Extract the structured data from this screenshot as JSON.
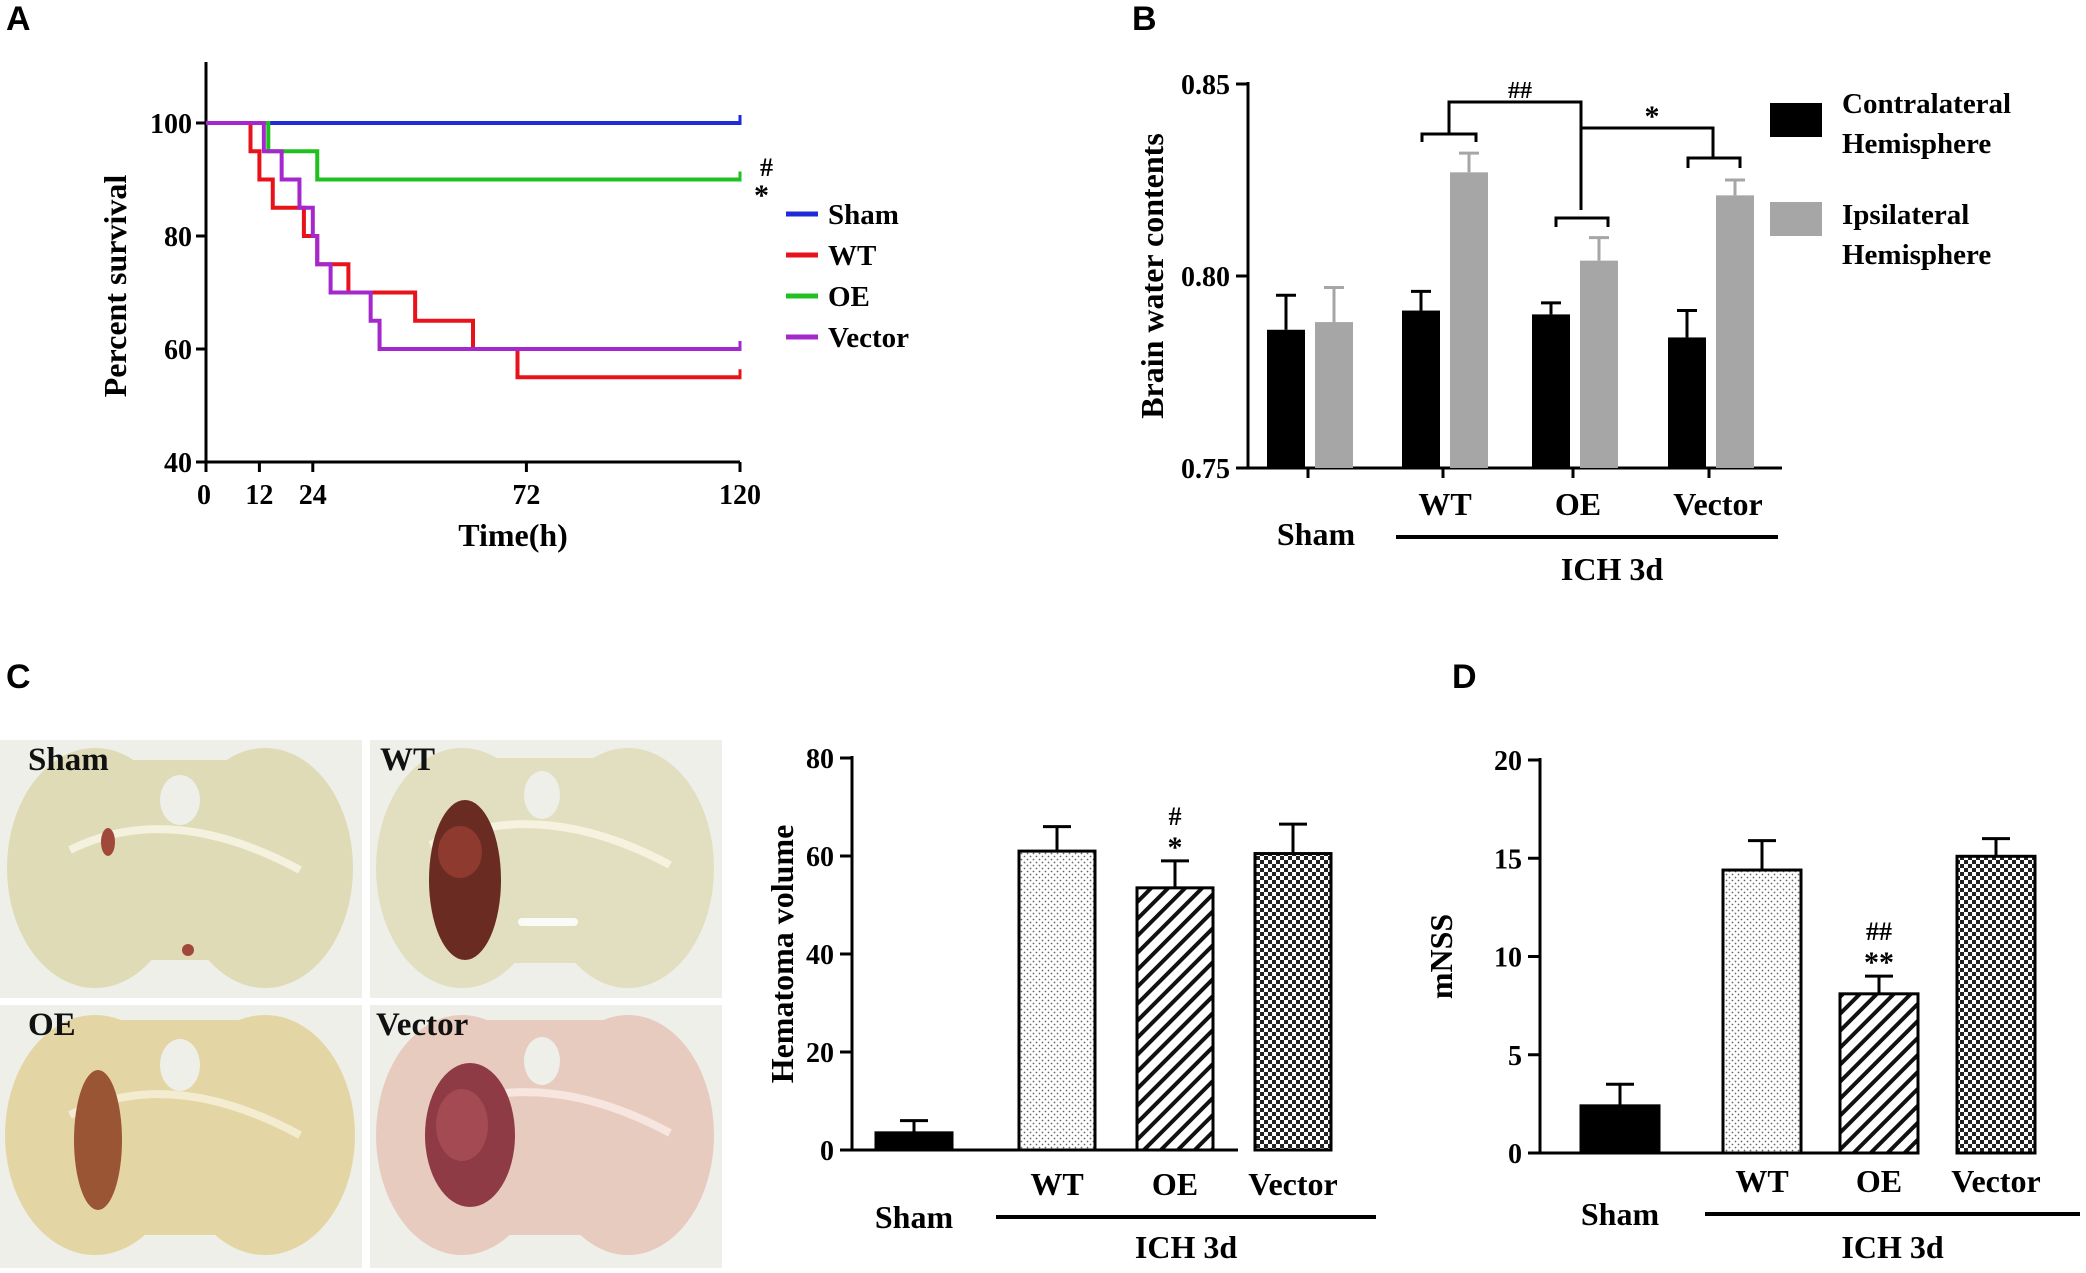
{
  "panels": {
    "A": "A",
    "B": "B",
    "C": "C",
    "D": "D"
  },
  "colors": {
    "sham": "#1f2bd8",
    "wt": "#e8121a",
    "oe": "#1fc01f",
    "vector": "#a528cc",
    "contra": "#000000",
    "ipsi": "#a6a6a6"
  },
  "chart_data": [
    {
      "id": "A",
      "type": "line",
      "title": "",
      "xlabel": "Time(h)",
      "ylabel": "Percent survival",
      "xlim": [
        0,
        120
      ],
      "ylim": [
        40,
        110
      ],
      "xticks": [
        0,
        12,
        24,
        72,
        120
      ],
      "yticks": [
        40,
        60,
        80,
        100
      ],
      "series": [
        {
          "name": "Sham",
          "color": "#1f2bd8",
          "steps": [
            [
              0,
              100
            ],
            [
              120,
              100
            ]
          ]
        },
        {
          "name": "WT",
          "color": "#e8121a",
          "steps": [
            [
              0,
              100
            ],
            [
              10,
              95
            ],
            [
              12,
              90
            ],
            [
              15,
              85
            ],
            [
              22,
              80
            ],
            [
              25,
              75
            ],
            [
              32,
              70
            ],
            [
              47,
              65
            ],
            [
              60,
              60
            ],
            [
              70,
              55
            ],
            [
              120,
              55
            ]
          ]
        },
        {
          "name": "OE",
          "color": "#1fc01f",
          "steps": [
            [
              0,
              100
            ],
            [
              14,
              95
            ],
            [
              25,
              90
            ],
            [
              120,
              90
            ]
          ]
        },
        {
          "name": "Vector",
          "color": "#a528cc",
          "steps": [
            [
              0,
              100
            ],
            [
              13,
              95
            ],
            [
              17,
              90
            ],
            [
              21,
              85
            ],
            [
              24,
              80
            ],
            [
              25,
              75
            ],
            [
              28,
              70
            ],
            [
              37,
              65
            ],
            [
              39,
              60
            ],
            [
              120,
              60
            ]
          ]
        }
      ],
      "annotations": [
        "#",
        "*"
      ]
    },
    {
      "id": "B",
      "type": "bar",
      "ylabel": "Brain water contents",
      "ylim": [
        0.75,
        0.85
      ],
      "yticks": [
        "0.75",
        "0.80",
        "0.85"
      ],
      "categories": [
        "Sham",
        "WT",
        "OE",
        "Vector"
      ],
      "group_label": "ICH 3d",
      "series": [
        {
          "name": "Contralateral Hemisphere",
          "legend_lines": [
            "Contralateral",
            "Hemisphere"
          ],
          "values": [
            0.786,
            0.791,
            0.79,
            0.784
          ],
          "errors": [
            0.009,
            0.005,
            0.003,
            0.007
          ]
        },
        {
          "name": "Ipsilateral Hemisphere",
          "legend_lines": [
            "Ipsilateral",
            "Hemisphere"
          ],
          "values": [
            0.788,
            0.827,
            0.804,
            0.821
          ],
          "errors": [
            0.009,
            0.005,
            0.006,
            0.004
          ]
        }
      ],
      "annotations": [
        "##",
        "*"
      ]
    },
    {
      "id": "C",
      "type": "bar",
      "ylabel": "Hematoma volume",
      "ylim": [
        0,
        80
      ],
      "yticks": [
        0,
        20,
        40,
        60,
        80
      ],
      "categories": [
        "Sham",
        "WT",
        "OE",
        "Vector"
      ],
      "group_label": "ICH 3d",
      "values": [
        3.5,
        61,
        53.5,
        60.5
      ],
      "errors": [
        2.5,
        5,
        5.5,
        6
      ],
      "annotations": {
        "OE": [
          "#",
          "*"
        ]
      }
    },
    {
      "id": "D",
      "type": "bar",
      "ylabel": "mNSS",
      "ylim": [
        0,
        20
      ],
      "yticks": [
        0,
        5,
        10,
        15,
        20
      ],
      "categories": [
        "Sham",
        "WT",
        "OE",
        "Vector"
      ],
      "group_label": "ICH 3d",
      "values": [
        2.4,
        14.4,
        8.1,
        15.1
      ],
      "errors": [
        1.1,
        1.5,
        0.9,
        0.9
      ],
      "annotations": {
        "OE": [
          "##",
          "**"
        ]
      }
    }
  ],
  "photos": {
    "labels": [
      "Sham",
      "WT",
      "OE",
      "Vector"
    ]
  }
}
